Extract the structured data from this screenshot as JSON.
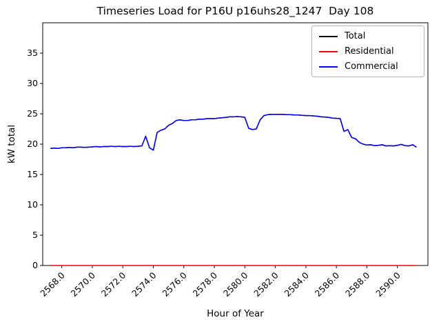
{
  "chart_data": {
    "type": "line",
    "title": "Timeseries Load for P16U p16uhs28_1247  Day 108",
    "xlabel": "Hour of Year",
    "ylabel": "kW total",
    "xlim": [
      2566.75,
      2592.0
    ],
    "ylim": [
      0,
      40
    ],
    "grid": false,
    "legend": {
      "position": "upper right"
    },
    "xtick_labels": [
      "2568.0",
      "2570.0",
      "2572.0",
      "2574.0",
      "2576.0",
      "2578.0",
      "2580.0",
      "2582.0",
      "2584.0",
      "2586.0",
      "2588.0",
      "2590.0"
    ],
    "ytick_labels": [
      "0",
      "5",
      "10",
      "15",
      "20",
      "25",
      "30",
      "35"
    ],
    "x": [
      2567.25,
      2567.5,
      2567.75,
      2568.0,
      2568.25,
      2568.5,
      2568.75,
      2569.0,
      2569.25,
      2569.5,
      2569.75,
      2570.0,
      2570.25,
      2570.5,
      2570.75,
      2571.0,
      2571.25,
      2571.5,
      2571.75,
      2572.0,
      2572.25,
      2572.5,
      2572.75,
      2573.0,
      2573.25,
      2573.5,
      2573.75,
      2574.0,
      2574.25,
      2574.5,
      2574.75,
      2575.0,
      2575.25,
      2575.5,
      2575.75,
      2576.0,
      2576.25,
      2576.5,
      2576.75,
      2577.0,
      2577.25,
      2577.5,
      2577.75,
      2578.0,
      2578.25,
      2578.5,
      2578.75,
      2579.0,
      2579.25,
      2579.5,
      2579.75,
      2580.0,
      2580.25,
      2580.5,
      2580.75,
      2581.0,
      2581.25,
      2581.5,
      2581.75,
      2582.0,
      2582.25,
      2582.5,
      2582.75,
      2583.0,
      2583.25,
      2583.5,
      2583.75,
      2584.0,
      2584.25,
      2584.5,
      2584.75,
      2585.0,
      2585.25,
      2585.5,
      2585.75,
      2586.0,
      2586.25,
      2586.5,
      2586.75,
      2587.0,
      2587.25,
      2587.5,
      2587.75,
      2588.0,
      2588.25,
      2588.5,
      2588.75,
      2589.0,
      2589.25,
      2589.5,
      2589.75,
      2590.0,
      2590.25,
      2590.5,
      2590.75,
      2591.0,
      2591.25
    ],
    "series": [
      {
        "name": "Total",
        "color": "#000000",
        "values": [
          19.3,
          19.35,
          19.3,
          19.4,
          19.4,
          19.45,
          19.4,
          19.5,
          19.5,
          19.45,
          19.5,
          19.55,
          19.6,
          19.55,
          19.6,
          19.6,
          19.65,
          19.6,
          19.65,
          19.6,
          19.6,
          19.65,
          19.6,
          19.65,
          19.7,
          21.3,
          19.4,
          19.0,
          21.9,
          22.3,
          22.5,
          23.1,
          23.4,
          23.9,
          24.0,
          23.9,
          23.9,
          24.0,
          24.0,
          24.1,
          24.1,
          24.2,
          24.2,
          24.2,
          24.3,
          24.35,
          24.4,
          24.5,
          24.5,
          24.55,
          24.5,
          24.4,
          22.6,
          22.4,
          22.5,
          24.0,
          24.7,
          24.85,
          24.9,
          24.9,
          24.9,
          24.9,
          24.85,
          24.85,
          24.8,
          24.8,
          24.75,
          24.7,
          24.7,
          24.65,
          24.6,
          24.5,
          24.45,
          24.4,
          24.3,
          24.25,
          24.2,
          22.1,
          22.4,
          21.1,
          20.9,
          20.3,
          20.0,
          19.85,
          19.9,
          19.75,
          19.8,
          19.9,
          19.7,
          19.75,
          19.7,
          19.8,
          19.95,
          19.75,
          19.7,
          19.9,
          19.5
        ]
      },
      {
        "name": "Residential",
        "color": "#ff0000",
        "values": [
          0,
          0,
          0,
          0,
          0,
          0,
          0,
          0,
          0,
          0,
          0,
          0,
          0,
          0,
          0,
          0,
          0,
          0,
          0,
          0,
          0,
          0,
          0,
          0,
          0,
          0,
          0,
          0,
          0,
          0,
          0,
          0,
          0,
          0,
          0,
          0,
          0,
          0,
          0,
          0,
          0,
          0,
          0,
          0,
          0,
          0,
          0,
          0,
          0,
          0,
          0,
          0,
          0,
          0,
          0,
          0,
          0,
          0,
          0,
          0,
          0,
          0,
          0,
          0,
          0,
          0,
          0,
          0,
          0,
          0,
          0,
          0,
          0,
          0,
          0,
          0,
          0,
          0,
          0,
          0,
          0,
          0,
          0,
          0,
          0,
          0,
          0,
          0,
          0,
          0,
          0,
          0,
          0,
          0,
          0,
          0,
          0
        ]
      },
      {
        "name": "Commercial",
        "color": "#0000ff",
        "values": [
          19.3,
          19.35,
          19.3,
          19.4,
          19.4,
          19.45,
          19.4,
          19.5,
          19.5,
          19.45,
          19.5,
          19.55,
          19.6,
          19.55,
          19.6,
          19.6,
          19.65,
          19.6,
          19.65,
          19.6,
          19.6,
          19.65,
          19.6,
          19.65,
          19.7,
          21.3,
          19.4,
          19.0,
          21.9,
          22.3,
          22.5,
          23.1,
          23.4,
          23.9,
          24.0,
          23.9,
          23.9,
          24.0,
          24.0,
          24.1,
          24.1,
          24.2,
          24.2,
          24.2,
          24.3,
          24.35,
          24.4,
          24.5,
          24.5,
          24.55,
          24.5,
          24.4,
          22.6,
          22.4,
          22.5,
          24.0,
          24.7,
          24.85,
          24.9,
          24.9,
          24.9,
          24.9,
          24.85,
          24.85,
          24.8,
          24.8,
          24.75,
          24.7,
          24.7,
          24.65,
          24.6,
          24.5,
          24.45,
          24.4,
          24.3,
          24.25,
          24.2,
          22.1,
          22.4,
          21.1,
          20.9,
          20.3,
          20.0,
          19.85,
          19.9,
          19.75,
          19.8,
          19.9,
          19.7,
          19.75,
          19.7,
          19.8,
          19.95,
          19.75,
          19.7,
          19.9,
          19.5
        ]
      }
    ]
  }
}
